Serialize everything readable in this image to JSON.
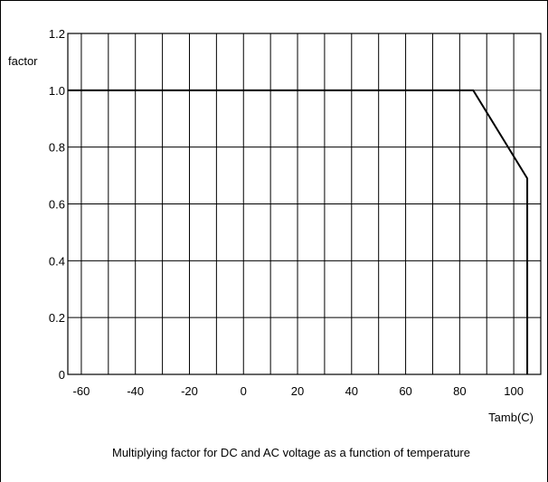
{
  "chart_data": {
    "type": "line",
    "title": "",
    "caption": "Multiplying factor for DC and AC voltage as a function of temperature",
    "xlabel": "Tamb(C)",
    "ylabel": "factor",
    "xlim": [
      -65,
      110
    ],
    "ylim": [
      0,
      1.2
    ],
    "x_ticks": [
      -60,
      -40,
      -20,
      0,
      20,
      40,
      60,
      80,
      100
    ],
    "x_tick_labels": [
      "-60",
      "-40",
      "-20",
      "0",
      "20",
      "40",
      "60",
      "80",
      "100"
    ],
    "y_ticks": [
      0,
      0.2,
      0.4,
      0.6,
      0.8,
      1.0,
      1.2
    ],
    "y_tick_labels": [
      "0",
      "0.2",
      "0.4",
      "0.6",
      "0.8",
      "1.0",
      "1.2"
    ],
    "x_grid_step": 10,
    "grid": true,
    "series": [
      {
        "x": [
          -65,
          85,
          105,
          105
        ],
        "y": [
          1.0,
          1.0,
          0.69,
          0
        ]
      }
    ]
  }
}
